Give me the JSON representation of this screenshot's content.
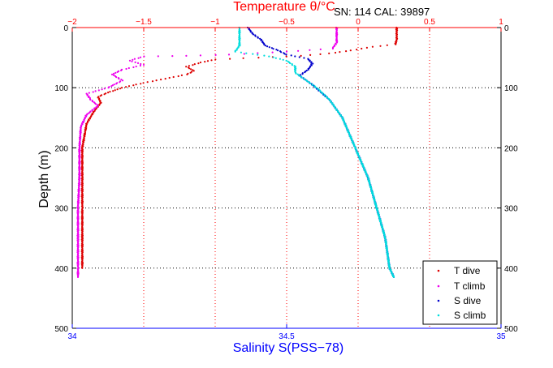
{
  "chart_data": {
    "type": "scatter",
    "title": "Temperature θ/°C",
    "annotation": "SN: 114  CAL: 39897",
    "xlabel_top": "Temperature θ/°C",
    "xlabel_bottom": "Salinity S(PSS−78)",
    "ylabel": "Depth (m)",
    "y_ticks": [
      0,
      100,
      200,
      300,
      400,
      500
    ],
    "y_tick_labels": [
      "0",
      "100",
      "200",
      "300",
      "400",
      "500"
    ],
    "ylim": [
      0,
      500
    ],
    "y_reversed": true,
    "temp_ticks": [
      -2,
      -1.5,
      -1,
      -0.5,
      0,
      0.5,
      1
    ],
    "temp_tick_labels": [
      "−2",
      "−1.5",
      "−1",
      "−0.5",
      "0",
      "0.5",
      "1"
    ],
    "temp_lim": [
      -2,
      1
    ],
    "sal_ticks": [
      34,
      34.5,
      35
    ],
    "sal_tick_labels": [
      "34",
      "34.5",
      "35"
    ],
    "sal_lim": [
      34,
      35
    ],
    "grid": true,
    "legend_position": "bottom-right",
    "colors": {
      "temp_axis": "#ff0000",
      "sal_axis": "#0000ff",
      "t_dive": "#dd0000",
      "t_climb": "#ee00ee",
      "s_dive": "#0000cc",
      "s_climb": "#00dddd"
    },
    "series": [
      {
        "name": "T dive",
        "axis": "temperature",
        "color": "#dd0000",
        "points": [
          [
            0.27,
            0
          ],
          [
            0.27,
            10
          ],
          [
            0.27,
            20
          ],
          [
            0.26,
            28
          ],
          [
            0.1,
            32
          ],
          [
            -0.05,
            38
          ],
          [
            -0.2,
            43
          ],
          [
            -0.4,
            47
          ],
          [
            -0.7,
            50
          ],
          [
            -1.0,
            53
          ],
          [
            -1.1,
            58
          ],
          [
            -1.2,
            65
          ],
          [
            -1.15,
            72
          ],
          [
            -1.2,
            78
          ],
          [
            -1.35,
            85
          ],
          [
            -1.5,
            92
          ],
          [
            -1.65,
            100
          ],
          [
            -1.75,
            108
          ],
          [
            -1.82,
            115
          ],
          [
            -1.8,
            125
          ],
          [
            -1.85,
            140
          ],
          [
            -1.9,
            160
          ],
          [
            -1.93,
            200
          ],
          [
            -1.93,
            250
          ],
          [
            -1.93,
            300
          ],
          [
            -1.93,
            350
          ],
          [
            -1.93,
            400
          ]
        ]
      },
      {
        "name": "T climb",
        "axis": "temperature",
        "color": "#ee00ee",
        "points": [
          [
            -0.15,
            0
          ],
          [
            -0.15,
            15
          ],
          [
            -0.15,
            25
          ],
          [
            -0.18,
            35
          ],
          [
            -0.5,
            40
          ],
          [
            -0.9,
            45
          ],
          [
            -1.2,
            47
          ],
          [
            -1.5,
            48
          ],
          [
            -1.6,
            55
          ],
          [
            -1.5,
            62
          ],
          [
            -1.65,
            70
          ],
          [
            -1.72,
            78
          ],
          [
            -1.65,
            88
          ],
          [
            -1.75,
            100
          ],
          [
            -1.9,
            110
          ],
          [
            -1.87,
            120
          ],
          [
            -1.82,
            130
          ],
          [
            -1.9,
            145
          ],
          [
            -1.94,
            165
          ],
          [
            -1.95,
            200
          ],
          [
            -1.95,
            250
          ],
          [
            -1.96,
            300
          ],
          [
            -1.96,
            350
          ],
          [
            -1.96,
            400
          ],
          [
            -1.96,
            415
          ]
        ]
      },
      {
        "name": "S dive",
        "axis": "salinity",
        "color": "#0000cc",
        "points": [
          [
            34.41,
            0
          ],
          [
            34.42,
            10
          ],
          [
            34.44,
            20
          ],
          [
            34.45,
            30
          ],
          [
            34.48,
            38
          ],
          [
            34.5,
            45
          ],
          [
            34.55,
            52
          ],
          [
            34.56,
            60
          ],
          [
            34.55,
            70
          ],
          [
            34.53,
            80
          ],
          [
            34.56,
            95
          ],
          [
            34.6,
            120
          ],
          [
            34.63,
            150
          ],
          [
            34.66,
            200
          ],
          [
            34.69,
            250
          ],
          [
            34.71,
            300
          ],
          [
            34.73,
            350
          ],
          [
            34.74,
            400
          ],
          [
            34.75,
            415
          ]
        ]
      },
      {
        "name": "S climb",
        "axis": "salinity",
        "color": "#00dddd",
        "points": [
          [
            34.39,
            0
          ],
          [
            34.39,
            15
          ],
          [
            34.39,
            30
          ],
          [
            34.38,
            40
          ],
          [
            34.46,
            48
          ],
          [
            34.5,
            55
          ],
          [
            34.52,
            65
          ],
          [
            34.52,
            75
          ],
          [
            34.55,
            90
          ],
          [
            34.57,
            100
          ],
          [
            34.6,
            120
          ],
          [
            34.63,
            150
          ],
          [
            34.66,
            200
          ],
          [
            34.69,
            250
          ],
          [
            34.71,
            300
          ],
          [
            34.73,
            350
          ],
          [
            34.74,
            400
          ],
          [
            34.75,
            415
          ]
        ]
      }
    ]
  }
}
